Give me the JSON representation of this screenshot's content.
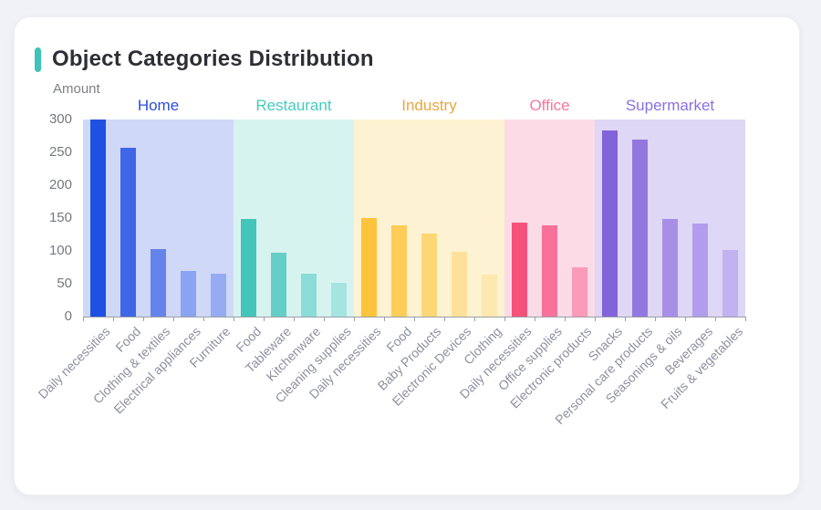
{
  "page": {
    "background": "#f0f2f5",
    "card_background": "#ffffff"
  },
  "header": {
    "title": "Object Categories Distribution",
    "accent_color": "#3ec3b6"
  },
  "chart_data": {
    "type": "bar",
    "title": "Object Categories Distribution",
    "xlabel": "",
    "ylabel": "Amount",
    "ylim": [
      0,
      300
    ],
    "yticks": [
      0,
      50,
      100,
      150,
      200,
      250,
      300
    ],
    "grid": false,
    "legend_position": "none",
    "x_label_rotation_deg": 45,
    "colors": {
      "axis": "#9aa0a6",
      "y_tick_label": "#75787d",
      "x_tick_label": "#8d90a0",
      "ylabel_text": "#7d8087"
    },
    "groups": [
      {
        "name": "Home",
        "label_color": "#2c4fdc",
        "band_color": "#cfd8f7",
        "bars": [
          {
            "label": "Daily necessities",
            "value": 300,
            "color": "#1e50e2"
          },
          {
            "label": "Food",
            "value": 257,
            "color": "#3f66e7"
          },
          {
            "label": "Clothing & textiles",
            "value": 103,
            "color": "#6484ec"
          },
          {
            "label": "Electrical appliances",
            "value": 69,
            "color": "#8ba3f1"
          },
          {
            "label": "Furniture",
            "value": 65,
            "color": "#97abf2"
          }
        ]
      },
      {
        "name": "Restaurant",
        "label_color": "#45cbbd",
        "band_color": "#d7f3f0",
        "bars": [
          {
            "label": "Food",
            "value": 148,
            "color": "#44c5ba"
          },
          {
            "label": "Tableware",
            "value": 97,
            "color": "#65cfc7"
          },
          {
            "label": "Kitchenware",
            "value": 65,
            "color": "#8bdcd6"
          },
          {
            "label": "Cleaning supplies",
            "value": 51,
            "color": "#a5e4df"
          }
        ]
      },
      {
        "name": "Industry",
        "label_color": "#eaa63f",
        "band_color": "#fdf2d1",
        "bars": [
          {
            "label": "Daily necessities",
            "value": 150,
            "color": "#fcc33c"
          },
          {
            "label": "Food",
            "value": 139,
            "color": "#fdcd58"
          },
          {
            "label": "Baby Products",
            "value": 126,
            "color": "#fdd776"
          },
          {
            "label": "Electronic Devices",
            "value": 99,
            "color": "#fde19a"
          },
          {
            "label": "Clothing",
            "value": 64,
            "color": "#fde8af"
          }
        ]
      },
      {
        "name": "Office",
        "label_color": "#f8779f",
        "band_color": "#fcdbe7",
        "bars": [
          {
            "label": "Daily necessities",
            "value": 143,
            "color": "#f5517b"
          },
          {
            "label": "Office supplies",
            "value": 139,
            "color": "#f7719a"
          },
          {
            "label": "Electronic products",
            "value": 75,
            "color": "#f99bb9"
          }
        ]
      },
      {
        "name": "Supermarket",
        "label_color": "#8a70e1",
        "band_color": "#ded7f5",
        "bars": [
          {
            "label": "Snacks",
            "value": 283,
            "color": "#8163da"
          },
          {
            "label": "Personal care products",
            "value": 269,
            "color": "#9277e0"
          },
          {
            "label": "Seasonings & oils",
            "value": 149,
            "color": "#a78fe7"
          },
          {
            "label": "Beverages",
            "value": 141,
            "color": "#b29ded"
          },
          {
            "label": "Fruits & vegetables",
            "value": 101,
            "color": "#c1b2f0"
          }
        ]
      }
    ]
  }
}
